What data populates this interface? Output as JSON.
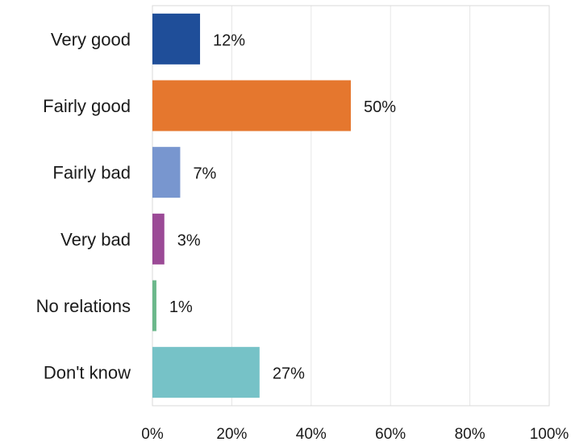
{
  "chart_data": {
    "type": "bar",
    "orientation": "horizontal",
    "categories": [
      "Very good",
      "Fairly good",
      "Fairly bad",
      "Very bad",
      "No relations",
      "Don't know"
    ],
    "values": [
      12,
      50,
      7,
      3,
      1,
      27
    ],
    "value_labels": [
      "12%",
      "50%",
      "7%",
      "3%",
      "1%",
      "27%"
    ],
    "colors": [
      "#1f4e99",
      "#e5772e",
      "#7896cf",
      "#9b4a96",
      "#6bb88b",
      "#76c2c7"
    ],
    "xlim": [
      0,
      100
    ],
    "xticks": [
      0,
      20,
      40,
      60,
      80,
      100
    ],
    "xtick_labels": [
      "0%",
      "20%",
      "40%",
      "60%",
      "80%",
      "100%"
    ],
    "grid": "vertical",
    "title": "",
    "xlabel": "",
    "ylabel": ""
  }
}
